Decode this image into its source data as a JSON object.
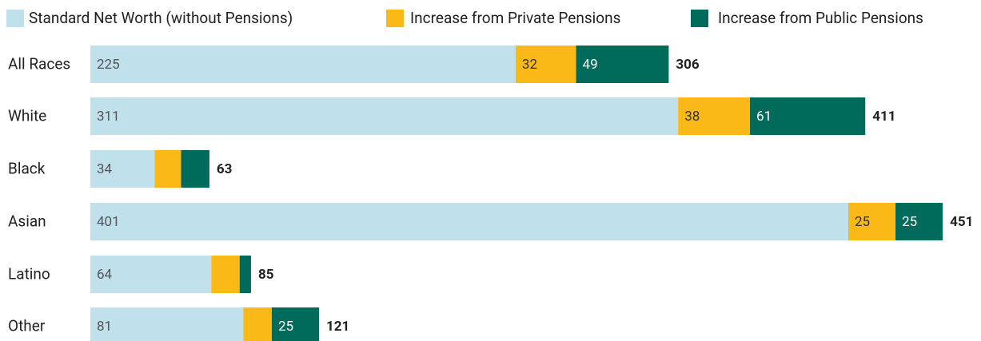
{
  "chart_data": {
    "type": "stacked-bar",
    "categories": [
      "All Races",
      "White",
      "Black",
      "Asian",
      "Latino",
      "Other"
    ],
    "series": [
      {
        "name": "Standard Net Worth (without Pensions)",
        "color": "#c0e1ec",
        "values": [
          225,
          311,
          34,
          401,
          64,
          81
        ]
      },
      {
        "name": "Increase from Private Pensions",
        "color": "#fbb917",
        "values": [
          32,
          38,
          14,
          25,
          15,
          15
        ]
      },
      {
        "name": "Increase from Public Pensions",
        "color": "#006b5b",
        "values": [
          49,
          61,
          15,
          25,
          6,
          25
        ]
      }
    ],
    "totals": [
      306,
      411,
      63,
      451,
      85,
      121
    ]
  }
}
